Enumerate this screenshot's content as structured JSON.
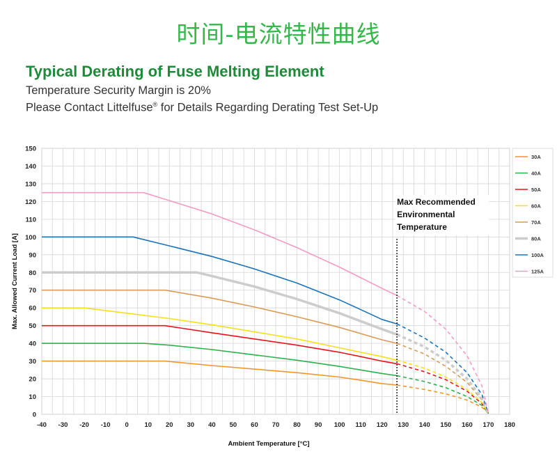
{
  "header": {
    "banner": "时间-电流特性曲线",
    "title": "Typical Derating of Fuse Melting Element",
    "subtitle_1": "Temperature Security Margin is 20%",
    "subtitle_2_prefix": "Please Contact Littelfuse",
    "subtitle_2_sup": "®",
    "subtitle_2_suffix": " for Details Regarding Derating Test Set-Up"
  },
  "chart_data": {
    "type": "line",
    "xlabel": "Ambient Temperature [°C]",
    "ylabel": "Max. Allowed Current Load [A]",
    "xlim": [
      -40,
      180
    ],
    "ylim": [
      0,
      150
    ],
    "x_ticks": [
      -40,
      -30,
      -20,
      -10,
      0,
      10,
      20,
      30,
      40,
      50,
      60,
      70,
      80,
      90,
      100,
      110,
      120,
      130,
      140,
      150,
      160,
      170,
      180
    ],
    "y_ticks": [
      0,
      10,
      20,
      30,
      40,
      50,
      60,
      70,
      80,
      90,
      100,
      110,
      120,
      130,
      140,
      150
    ],
    "grid": true,
    "legend_position": "right",
    "annotation": {
      "lines": [
        "Max Recommended",
        "Environmental",
        "Temperature"
      ],
      "x": 127
    },
    "dashed_from_x": 127,
    "series": [
      {
        "name": "30A",
        "color": "#f0962c",
        "flat_end": 18,
        "solid": [
          [
            -40,
            30
          ],
          [
            18,
            30
          ],
          [
            40,
            27.5
          ],
          [
            60,
            25.5
          ],
          [
            80,
            23.5
          ],
          [
            100,
            21
          ],
          [
            110,
            19.2
          ],
          [
            120,
            17.3
          ],
          [
            127,
            16.5
          ]
        ],
        "dashed": [
          [
            127,
            16.5
          ],
          [
            140,
            14
          ],
          [
            150,
            11.5
          ],
          [
            160,
            8
          ],
          [
            167,
            4
          ],
          [
            170,
            0.5
          ]
        ]
      },
      {
        "name": "40A",
        "color": "#2db04b",
        "flat_end": 8,
        "solid": [
          [
            -40,
            40
          ],
          [
            8,
            40
          ],
          [
            20,
            39
          ],
          [
            40,
            36.5
          ],
          [
            60,
            33.5
          ],
          [
            80,
            30.5
          ],
          [
            100,
            27
          ],
          [
            110,
            25
          ],
          [
            120,
            23
          ],
          [
            127,
            21.8
          ]
        ],
        "dashed": [
          [
            127,
            21.8
          ],
          [
            140,
            18.5
          ],
          [
            150,
            15
          ],
          [
            160,
            10
          ],
          [
            167,
            5
          ],
          [
            170,
            0.5
          ]
        ]
      },
      {
        "name": "50A",
        "color": "#e4141b",
        "flat_end": 18,
        "solid": [
          [
            -40,
            50
          ],
          [
            18,
            50
          ],
          [
            40,
            46
          ],
          [
            60,
            42.5
          ],
          [
            80,
            39
          ],
          [
            100,
            35
          ],
          [
            110,
            32.5
          ],
          [
            120,
            30
          ],
          [
            127,
            28.5
          ]
        ],
        "dashed": [
          [
            127,
            28.5
          ],
          [
            140,
            24
          ],
          [
            150,
            19.5
          ],
          [
            160,
            13
          ],
          [
            167,
            6
          ],
          [
            170,
            0.5
          ]
        ]
      },
      {
        "name": "60A",
        "color": "#f5e01a",
        "flat_end": -20,
        "solid": [
          [
            -40,
            60
          ],
          [
            -20,
            60
          ],
          [
            0,
            57
          ],
          [
            20,
            54
          ],
          [
            40,
            50.5
          ],
          [
            60,
            46.5
          ],
          [
            80,
            42.5
          ],
          [
            100,
            37.5
          ],
          [
            110,
            35
          ],
          [
            120,
            32.5
          ],
          [
            127,
            30.5
          ]
        ],
        "dashed": [
          [
            127,
            30.5
          ],
          [
            140,
            26
          ],
          [
            150,
            21
          ],
          [
            160,
            14
          ],
          [
            167,
            6.5
          ],
          [
            170,
            0.5
          ]
        ]
      },
      {
        "name": "70A",
        "color": "#d99a55",
        "flat_end": 18,
        "solid": [
          [
            -40,
            70
          ],
          [
            18,
            70
          ],
          [
            40,
            65.5
          ],
          [
            60,
            60.5
          ],
          [
            80,
            55
          ],
          [
            100,
            49
          ],
          [
            110,
            45.5
          ],
          [
            120,
            42
          ],
          [
            127,
            40
          ]
        ],
        "dashed": [
          [
            127,
            40
          ],
          [
            140,
            34
          ],
          [
            150,
            27
          ],
          [
            160,
            18
          ],
          [
            167,
            8
          ],
          [
            170,
            0.5
          ]
        ]
      },
      {
        "name": "80A",
        "color": "#cccccc",
        "flat_end": 33,
        "solid": [
          [
            -40,
            80
          ],
          [
            33,
            80
          ],
          [
            40,
            78
          ],
          [
            60,
            72
          ],
          [
            80,
            65
          ],
          [
            100,
            57
          ],
          [
            110,
            52.5
          ],
          [
            120,
            48
          ],
          [
            127,
            45
          ]
        ],
        "dashed": [
          [
            127,
            45
          ],
          [
            140,
            38
          ],
          [
            150,
            30.5
          ],
          [
            160,
            20
          ],
          [
            167,
            9
          ],
          [
            170,
            0.5
          ]
        ]
      },
      {
        "name": "100A",
        "color": "#1b73b9",
        "flat_end": 3,
        "solid": [
          [
            -40,
            100
          ],
          [
            3,
            100
          ],
          [
            20,
            95
          ],
          [
            40,
            89
          ],
          [
            60,
            82
          ],
          [
            80,
            74
          ],
          [
            100,
            64.5
          ],
          [
            110,
            59
          ],
          [
            120,
            53.5
          ],
          [
            127,
            51
          ]
        ],
        "dashed": [
          [
            127,
            51
          ],
          [
            140,
            43
          ],
          [
            150,
            35
          ],
          [
            160,
            23.5
          ],
          [
            167,
            11
          ],
          [
            170,
            0.5
          ]
        ]
      },
      {
        "name": "125A",
        "color": "#f29bc4",
        "flat_end": 8,
        "solid": [
          [
            -40,
            125
          ],
          [
            8,
            125
          ],
          [
            20,
            120.5
          ],
          [
            40,
            113
          ],
          [
            60,
            104
          ],
          [
            80,
            94
          ],
          [
            100,
            83
          ],
          [
            110,
            77
          ],
          [
            120,
            71
          ],
          [
            127,
            67
          ]
        ],
        "dashed": [
          [
            127,
            67
          ],
          [
            140,
            58
          ],
          [
            150,
            48
          ],
          [
            160,
            33
          ],
          [
            167,
            16
          ],
          [
            170,
            0.5
          ]
        ]
      }
    ]
  }
}
